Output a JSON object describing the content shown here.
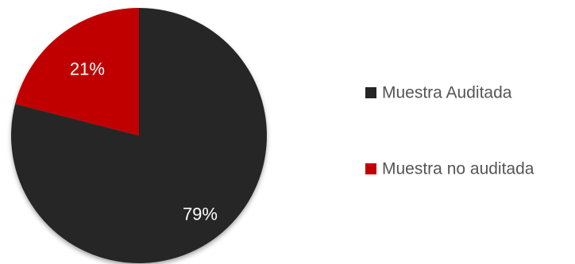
{
  "chart_data": {
    "type": "pie",
    "title": "",
    "legend_position": "right",
    "slices": [
      {
        "label": "Muestra Auditada",
        "value": 79,
        "display": "79%",
        "color": "#262626"
      },
      {
        "label": "Muestra no auditada",
        "value": 21,
        "display": "21%",
        "color": "#c00000"
      }
    ]
  }
}
